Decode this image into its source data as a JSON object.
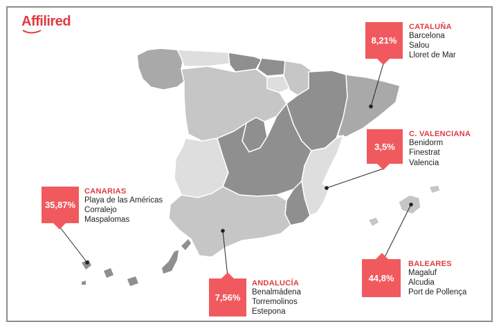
{
  "brand": {
    "name": "Affilired"
  },
  "colors": {
    "accent": "#f05a5e",
    "accent_text": "#e03a3e",
    "map_dark": "#8f8f8f",
    "map_mid": "#a9a9a9",
    "map_light": "#c6c6c6",
    "map_lighter": "#dedede"
  },
  "regions": {
    "cataluna": {
      "name": "CATALUÑA",
      "percent": "8,21%",
      "cities": [
        "Barcelona",
        "Salou",
        "Lloret de Mar"
      ]
    },
    "valenciana": {
      "name": "C. VALENCIANA",
      "percent": "3,5%",
      "cities": [
        "Benidorm",
        "Finestrat",
        "Valencia"
      ]
    },
    "canarias": {
      "name": "CANARIAS",
      "percent": "35,87%",
      "cities": [
        "Playa de las Américas",
        "Corralejo",
        "Maspalomas"
      ]
    },
    "andalucia": {
      "name": "ANDALUCÍA",
      "percent": "7,56%",
      "cities": [
        "Benalmádena",
        "Torremolinos",
        "Estepona"
      ]
    },
    "baleares": {
      "name": "BALEARES",
      "percent": "44,8%",
      "cities": [
        "Magaluf",
        "Alcudia",
        "Port de Pollença"
      ]
    }
  }
}
